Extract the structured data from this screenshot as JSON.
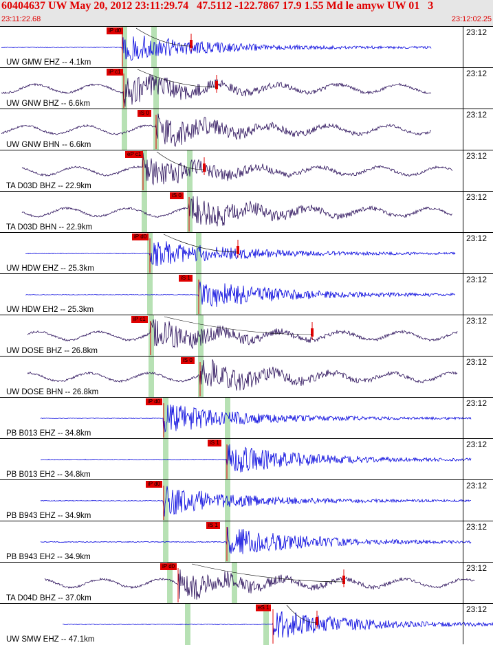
{
  "header": {
    "title": "60404637 UW May 20, 2012 23:11:29.74   47.5112 -122.7867 17.9 1.55 Md le amyw UW 01   3",
    "start_time": "23:11:22.68",
    "end_time": "23:12:02.25"
  },
  "colors": {
    "header_bg": "#e6e6e6",
    "header_text": "#e00000",
    "pick_red": "#e00000",
    "window_green": "#b7e1b4",
    "trace_blue": "#0000dd",
    "trace_purple": "#2a0f5a"
  },
  "panels": [
    {
      "label": "UW GMW EHZ -- 4.1km",
      "time": "23:12",
      "pick": "iP d0",
      "color": "blue",
      "onset": 0.3,
      "end": 0.95
    },
    {
      "label": "UW GNW BHZ -- 6.6km",
      "time": "23:12",
      "pick": "iP c1",
      "color": "purple",
      "onset": 0.3,
      "end": 0.95
    },
    {
      "label": "UW GNW BHN -- 6.6km",
      "time": "23:12",
      "pick": "iS 0",
      "color": "purple",
      "onset": 0.34,
      "end": 0.95
    },
    {
      "label": "TA D03D BHZ -- 22.9km",
      "time": "23:12",
      "pick": "eP c1",
      "color": "purple",
      "onset": 0.37,
      "end": 0.99
    },
    {
      "label": "TA D03D BHN -- 22.9km",
      "time": "23:12",
      "pick": "iS 0",
      "color": "purple",
      "onset": 0.4,
      "end": 0.99
    },
    {
      "label": "UW HDW EHZ -- 25.3km",
      "time": "23:12",
      "pick": "iP d0",
      "color": "blue",
      "onset": 0.33,
      "end": 0.99
    },
    {
      "label": "UW HDW EH2 -- 25.3km",
      "time": "23:12",
      "pick": "iS 1",
      "color": "blue",
      "onset": 0.4,
      "end": 0.99
    },
    {
      "label": "UW DOSE BHZ -- 26.8km",
      "time": "23:12",
      "pick": "iP c1",
      "color": "purple",
      "onset": 0.33,
      "end": 0.99
    },
    {
      "label": "UW DOSE BHN -- 26.8km",
      "time": "23:12",
      "pick": "iS 0",
      "color": "purple",
      "onset": 0.43,
      "end": 0.99
    },
    {
      "label": "PB B013 EHZ -- 34.8km",
      "time": "23:12",
      "pick": "iP d0",
      "color": "blue",
      "onset": 0.36,
      "end": 0.99
    },
    {
      "label": "PB B013 EH2 -- 34.8km",
      "time": "23:12",
      "pick": "iS 1",
      "color": "blue",
      "onset": 0.49,
      "end": 0.99
    },
    {
      "label": "PB B943 EHZ -- 34.9km",
      "time": "23:12",
      "pick": "iP d0",
      "color": "blue",
      "onset": 0.36,
      "end": 0.99
    },
    {
      "label": "PB B943 EH2 -- 34.9km",
      "time": "23:12",
      "pick": "iS 1",
      "color": "blue",
      "onset": 0.49,
      "end": 0.99
    },
    {
      "label": "TA D04D BHZ -- 37.0km",
      "time": "23:12",
      "pick": "iP d0",
      "color": "purple",
      "onset": 0.38,
      "end": 0.99
    },
    {
      "label": "UW SMW EHZ -- 47.1km",
      "time": "23:12",
      "pick": "eS 1",
      "color": "blue",
      "onset": 0.57,
      "end": 0.99
    }
  ]
}
